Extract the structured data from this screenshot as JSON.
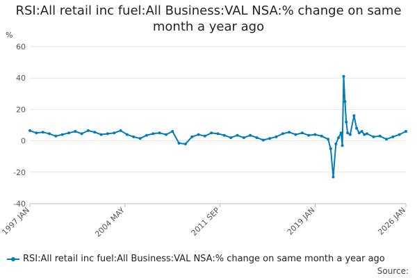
{
  "chart_data": {
    "type": "line",
    "title": "RSI:All retail inc fuel:All Business:VAL NSA:% change on same month a year ago",
    "unit_label": "%",
    "xlabel": "",
    "ylabel": "%",
    "ylim": [
      -40,
      60
    ],
    "yticks": [
      -40,
      -20,
      0,
      20,
      40,
      60
    ],
    "xlim": [
      "1997 JAN",
      "2026 JAN"
    ],
    "xticks": [
      "1997 JAN",
      "2004 MAY",
      "2011 SEP",
      "2019 JAN",
      "2026 JAN"
    ],
    "grid": true,
    "legend_position": "bottom-left",
    "color": "#007bbb",
    "series": [
      {
        "name": "RSI:All retail inc fuel:All Business:VAL NSA:% change on same month a year ago",
        "x": [
          1997.0,
          1997.5,
          1998.0,
          1998.5,
          1999.0,
          1999.5,
          2000.0,
          2000.5,
          2001.0,
          2001.5,
          2002.0,
          2002.5,
          2003.0,
          2003.5,
          2004.0,
          2004.5,
          2005.0,
          2005.5,
          2006.0,
          2006.5,
          2007.0,
          2007.5,
          2008.0,
          2008.5,
          2009.0,
          2009.5,
          2010.0,
          2010.5,
          2011.0,
          2011.5,
          2012.0,
          2012.5,
          2013.0,
          2013.5,
          2014.0,
          2014.5,
          2015.0,
          2015.5,
          2016.0,
          2016.5,
          2017.0,
          2017.5,
          2018.0,
          2018.5,
          2019.0,
          2019.5,
          2020.0,
          2020.2,
          2020.4,
          2020.6,
          2020.8,
          2021.0,
          2021.1,
          2021.2,
          2021.3,
          2021.4,
          2021.5,
          2021.7,
          2022.0,
          2022.2,
          2022.4,
          2022.6,
          2022.8,
          2023.0,
          2023.5,
          2024.0,
          2024.5,
          2025.0,
          2025.5,
          2026.0
        ],
        "values": [
          6.5,
          5.0,
          5.5,
          4.5,
          3.0,
          4.0,
          5.0,
          6.0,
          4.5,
          6.5,
          5.5,
          4.0,
          4.5,
          5.0,
          6.5,
          4.0,
          2.5,
          1.5,
          3.5,
          4.5,
          5.0,
          4.0,
          6.0,
          -1.5,
          -2.0,
          2.5,
          4.0,
          3.0,
          5.0,
          4.5,
          3.5,
          2.0,
          3.5,
          2.0,
          3.5,
          2.0,
          0.5,
          1.5,
          2.5,
          4.5,
          5.5,
          4.0,
          5.0,
          3.5,
          4.0,
          3.0,
          1.0,
          -5.0,
          -23.0,
          -2.0,
          2.0,
          5.0,
          -3.0,
          41.0,
          25.0,
          12.0,
          5.0,
          4.0,
          16.0,
          8.0,
          5.0,
          6.0,
          4.0,
          4.5,
          2.5,
          3.0,
          1.0,
          2.5,
          4.0,
          6.0
        ]
      }
    ]
  },
  "legend": {
    "label": "RSI:All retail inc fuel:All Business:VAL NSA:% change on same month a year ago"
  },
  "footer": {
    "source": "Source:"
  }
}
